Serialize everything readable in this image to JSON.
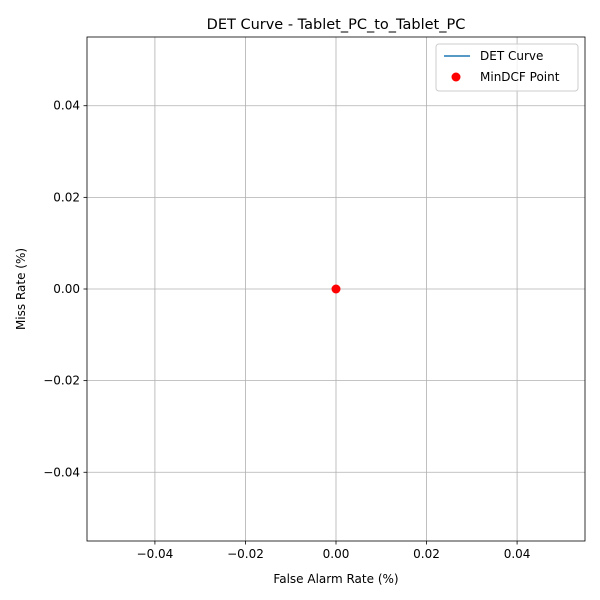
{
  "chart_data": {
    "type": "scatter",
    "title": "DET Curve - Tablet_PC_to_Tablet_PC",
    "xlabel": "False Alarm Rate (%)",
    "ylabel": "Miss Rate (%)",
    "xlim": [
      -0.055,
      0.055
    ],
    "ylim": [
      -0.055,
      0.055
    ],
    "grid": true,
    "legend_placement": "top-right",
    "x_ticks": [
      -0.04,
      -0.02,
      0.0,
      0.02,
      0.04
    ],
    "x_tick_labels": [
      "−0.04",
      "−0.02",
      "0.00",
      "0.02",
      "0.04"
    ],
    "y_ticks": [
      -0.04,
      -0.02,
      0.0,
      0.02,
      0.04
    ],
    "y_tick_labels": [
      "−0.04",
      "−0.02",
      "0.00",
      "0.02",
      "0.04"
    ],
    "series": [
      {
        "name": "DET Curve",
        "kind": "line",
        "color": "#1f77b4",
        "x": [
          0.0
        ],
        "y": [
          0.0
        ]
      },
      {
        "name": "MinDCF Point",
        "kind": "scatter",
        "color": "#ff0000",
        "x": [
          0.0
        ],
        "y": [
          0.0
        ]
      }
    ]
  }
}
